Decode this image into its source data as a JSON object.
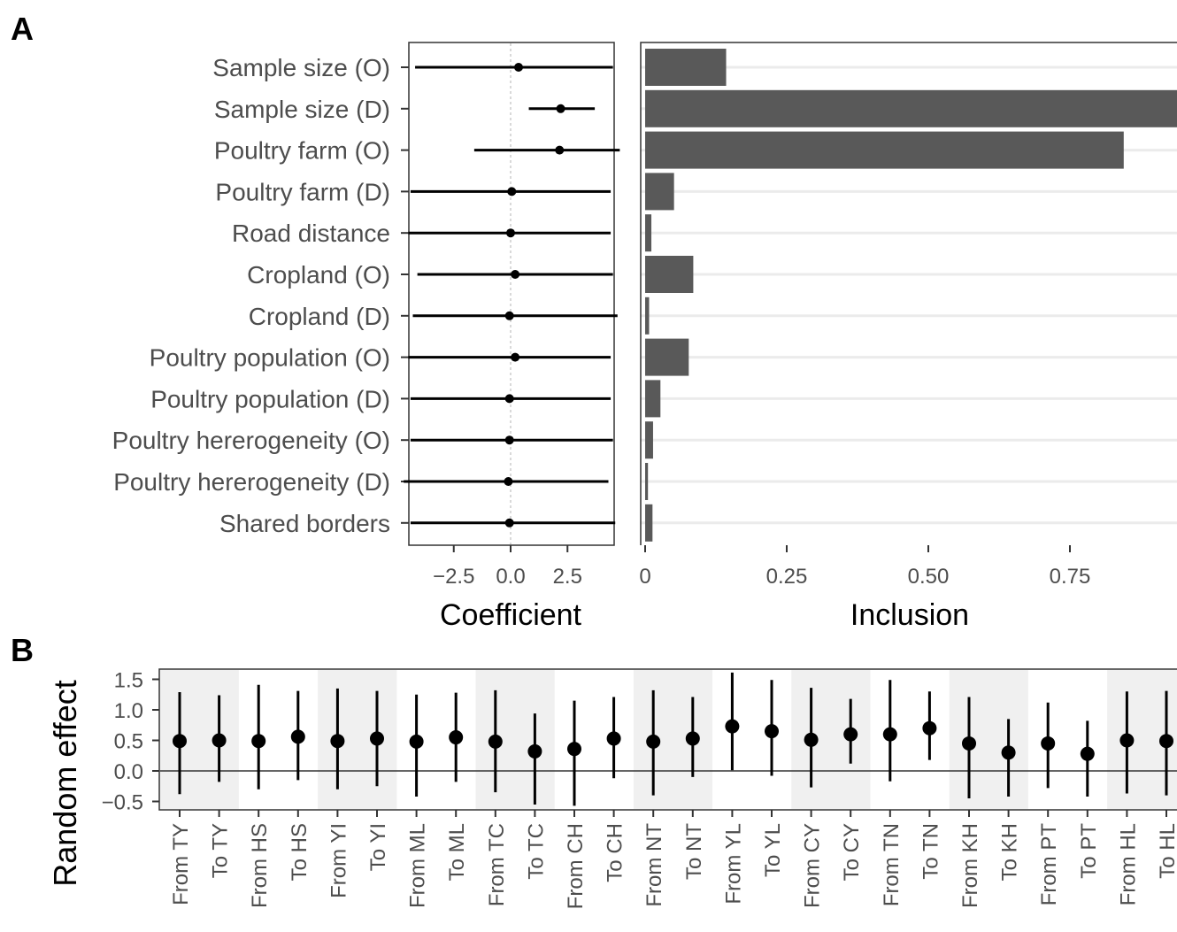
{
  "panels": {
    "a": "A",
    "b": "B"
  },
  "colors": {
    "bar": "#595959",
    "point": "#000000",
    "gridline": "#ebebeb",
    "band": "#f0f0f0",
    "axis": "#333333",
    "reference_line": "#b3b3b3"
  },
  "chart_data": [
    {
      "type": "scatter",
      "subtype": "point-range",
      "panel": "A",
      "xlabel": "Coefficient",
      "ylabel": "",
      "xlim": [
        -5,
        5
      ],
      "xticks": [
        "−2.5",
        "0.0",
        "2.5"
      ],
      "xtick_values": [
        -2.5,
        0,
        2.5
      ],
      "reference_line": 0,
      "categories": [
        "Sample size (O)",
        "Sample size (D)",
        "Poultry farm (O)",
        "Poultry farm (D)",
        "Road distance",
        "Cropland (O)",
        "Cropland (D)",
        "Poultry population (O)",
        "Poultry population (D)",
        "Poultry hererogeneity (O)",
        "Poultry hererogeneity (D)",
        "Shared borders"
      ],
      "estimate": [
        0.35,
        2.2,
        2.15,
        0.05,
        0.0,
        0.2,
        -0.05,
        0.2,
        -0.05,
        -0.05,
        -0.1,
        -0.05
      ],
      "lower": [
        -4.2,
        0.8,
        -1.6,
        -4.4,
        -4.5,
        -4.1,
        -4.3,
        -4.5,
        -4.4,
        -4.4,
        -4.7,
        -4.4
      ],
      "upper": [
        4.5,
        3.7,
        4.8,
        4.4,
        4.4,
        4.5,
        4.7,
        4.4,
        4.4,
        4.5,
        4.3,
        4.6
      ]
    },
    {
      "type": "bar",
      "orientation": "horizontal",
      "panel": "A",
      "xlabel": "Inclusion",
      "xlim": [
        0,
        0.94
      ],
      "xticks": [
        "0",
        "0.25",
        "0.50",
        "0.75"
      ],
      "xtick_values": [
        0,
        0.25,
        0.5,
        0.75
      ],
      "categories": [
        "Sample size (O)",
        "Sample size (D)",
        "Poultry farm (O)",
        "Poultry farm (D)",
        "Road distance",
        "Cropland (O)",
        "Cropland (D)",
        "Poultry population (O)",
        "Poultry population (D)",
        "Poultry hererogeneity (O)",
        "Poultry hererogeneity (D)",
        "Shared borders"
      ],
      "values": [
        0.143,
        0.94,
        0.845,
        0.051,
        0.011,
        0.085,
        0.007,
        0.077,
        0.027,
        0.014,
        0.005,
        0.013
      ]
    },
    {
      "type": "scatter",
      "subtype": "point-range",
      "panel": "B",
      "xlabel": "",
      "ylabel": "Random effect",
      "ylim": [
        -0.62,
        1.65
      ],
      "yticks": [
        "1.5",
        "1.0",
        "0.5",
        "0.0",
        "−0.5"
      ],
      "ytick_values": [
        1.5,
        1.0,
        0.5,
        0.0,
        -0.5
      ],
      "reference_line": 0,
      "shaded_bands": true,
      "categories": [
        "From TY",
        "To TY",
        "From HS",
        "To HS",
        "From YI",
        "To YI",
        "From ML",
        "To ML",
        "From TC",
        "To TC",
        "From CH",
        "To CH",
        "From NT",
        "To NT",
        "From YL",
        "To YL",
        "From CY",
        "To CY",
        "From TN",
        "To TN",
        "From KH",
        "To KH",
        "From PT",
        "To PT",
        "From HL",
        "To HL"
      ],
      "estimate": [
        0.49,
        0.5,
        0.49,
        0.56,
        0.49,
        0.53,
        0.48,
        0.55,
        0.48,
        0.32,
        0.36,
        0.53,
        0.48,
        0.53,
        0.73,
        0.65,
        0.51,
        0.6,
        0.6,
        0.7,
        0.45,
        0.3,
        0.45,
        0.28,
        0.5,
        0.49
      ],
      "lower": [
        -0.38,
        -0.18,
        -0.3,
        -0.15,
        -0.3,
        -0.25,
        -0.42,
        -0.18,
        -0.35,
        -0.55,
        -0.57,
        -0.12,
        -0.4,
        -0.1,
        0.01,
        -0.08,
        -0.27,
        0.12,
        -0.17,
        0.18,
        -0.45,
        -0.42,
        -0.28,
        -0.42,
        -0.37,
        -0.4
      ],
      "upper": [
        1.29,
        1.24,
        1.41,
        1.31,
        1.35,
        1.31,
        1.25,
        1.28,
        1.32,
        0.94,
        1.15,
        1.21,
        1.32,
        1.21,
        1.61,
        1.49,
        1.36,
        1.18,
        1.49,
        1.3,
        1.21,
        0.85,
        1.12,
        0.82,
        1.3,
        1.31
      ]
    }
  ]
}
